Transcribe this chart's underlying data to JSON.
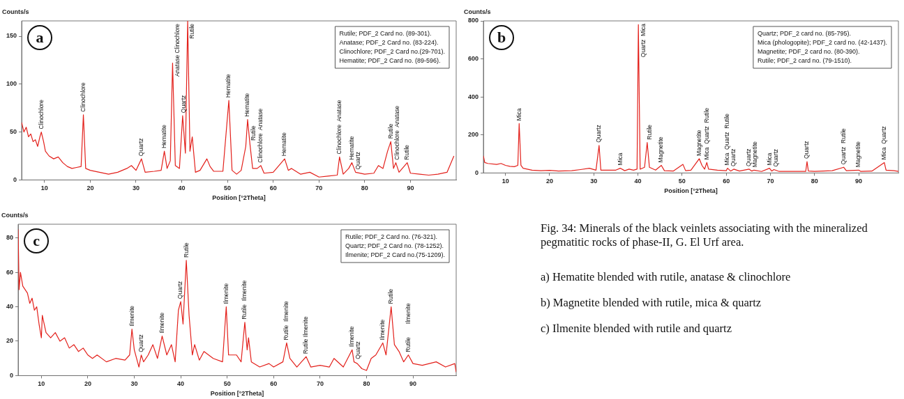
{
  "chart_data": [
    {
      "type": "line",
      "title": "a",
      "xlabel": "Position [°2Theta]",
      "ylabel": "Counts/s",
      "color": "#e3201b",
      "xlim": [
        5,
        100
      ],
      "ylim": [
        0,
        166
      ],
      "xticks": [
        10,
        20,
        30,
        40,
        50,
        60,
        70,
        80,
        90
      ],
      "yticks": [
        0,
        50,
        100,
        150
      ],
      "x": [
        5,
        5.5,
        6,
        6.5,
        7,
        7.5,
        8,
        8.5,
        9,
        9.3,
        9.8,
        10.2,
        11,
        12,
        13,
        14,
        15,
        16,
        17,
        18,
        18.5,
        19,
        20,
        22,
        24,
        26,
        28,
        29,
        30,
        31.2,
        32,
        34,
        35.5,
        36.2,
        36.8,
        37.5,
        38,
        38.6,
        39.5,
        40.2,
        40.8,
        41.3,
        41.8,
        42.3,
        43,
        44,
        45.5,
        46.2,
        47,
        49,
        50.3,
        51,
        52,
        53,
        54,
        54.4,
        54.9,
        55.5,
        56.5,
        57.3,
        58,
        60,
        62.5,
        63.3,
        64,
        66,
        68,
        70,
        72,
        74,
        74.5,
        75.3,
        76.5,
        77.2,
        78,
        80,
        82,
        83,
        84,
        85,
        85.7,
        86.3,
        86.8,
        87.5,
        89.3,
        90,
        92,
        94,
        96,
        98,
        99.5
      ],
      "values": [
        60,
        50,
        55,
        45,
        48,
        40,
        42,
        35,
        45,
        50,
        40,
        30,
        25,
        22,
        24,
        18,
        14,
        12,
        13,
        14,
        68,
        12,
        10,
        8,
        6,
        8,
        12,
        15,
        10,
        22,
        8,
        9,
        10,
        30,
        12,
        20,
        122,
        15,
        12,
        67,
        28,
        166,
        30,
        45,
        8,
        10,
        22,
        14,
        9,
        9,
        83,
        10,
        6,
        10,
        35,
        63,
        38,
        12,
        12,
        15,
        7,
        8,
        22,
        10,
        12,
        6,
        8,
        3,
        4,
        5,
        24,
        6,
        12,
        18,
        8,
        6,
        7,
        15,
        12,
        30,
        40,
        12,
        18,
        8,
        18,
        7,
        6,
        5,
        6,
        8,
        25
      ],
      "annotations": [
        "Rutile; PDF_2 Card no. (89-301).",
        "Anatase; PDF_2 Card no. (83-224).",
        "Clinochlore; PDF_2 Card no.(29-701).",
        "Hematite; PDF_2 Card no. (89-596).",
        {
          "text": "Clinochlore",
          "x": 9.3,
          "y": 50
        },
        {
          "text": "Clinochlore",
          "x": 18.5,
          "y": 68
        },
        {
          "text": "Quartz",
          "x": 31.2,
          "y": 22
        },
        {
          "text": "Hematite",
          "x": 36.2,
          "y": 30
        },
        {
          "text": "Anatase Clinochlore",
          "x": 38,
          "y": 122
        },
        {
          "text": "Quartz",
          "x": 40.2,
          "y": 67
        },
        {
          "text": "Rutile",
          "x": 41.3,
          "y": 166
        },
        {
          "text": "Hematite",
          "x": 50.3,
          "y": 83
        },
        {
          "text": "Hematite",
          "x": 54.4,
          "y": 63
        },
        {
          "text": "Rutile",
          "x": 54.9,
          "y": 38
        },
        {
          "text": "Clinochlore  Anatase",
          "x": 57.3,
          "y": 15
        },
        {
          "text": "Hematite",
          "x": 62.5,
          "y": 22
        },
        {
          "text": "Clinochlore  Anatase",
          "x": 74.5,
          "y": 24
        },
        {
          "text": "Hematite",
          "x": 77.2,
          "y": 18
        },
        {
          "text": "Quartz",
          "x": 78,
          "y": 8
        },
        {
          "text": "Rutile",
          "x": 85.7,
          "y": 40
        },
        {
          "text": "Clinochlore  Anatase",
          "x": 86.8,
          "y": 18
        },
        {
          "text": "Rutile",
          "x": 89.3,
          "y": 18
        }
      ]
    },
    {
      "type": "line",
      "title": "b",
      "xlabel": "Position [°2Theta]",
      "ylabel": "Counts/s",
      "color": "#e3201b",
      "xlim": [
        5,
        99
      ],
      "ylim": [
        0,
        800
      ],
      "xticks": [
        10,
        20,
        30,
        40,
        50,
        60,
        70,
        80,
        90
      ],
      "yticks": [
        0,
        200,
        400,
        600,
        800
      ],
      "x": [
        5,
        5.3,
        6,
        8,
        9,
        10,
        11,
        12,
        12.8,
        13.1,
        13.5,
        14,
        16,
        18,
        20,
        22,
        25,
        27,
        29,
        30.5,
        31.2,
        31.6,
        33,
        35,
        36,
        37,
        38,
        39,
        39.8,
        40.1,
        40.5,
        41.5,
        42.1,
        42.6,
        44,
        45.3,
        46,
        48,
        50.2,
        50.8,
        52,
        53.9,
        54.5,
        55.1,
        55.6,
        56,
        58,
        60,
        60.3,
        61,
        61.7,
        63,
        65.2,
        65.8,
        66.3,
        68,
        69.8,
        70.3,
        70.8,
        72,
        75,
        78,
        78.3,
        78.6,
        80,
        84,
        86.6,
        87.2,
        90,
        90.5,
        93,
        95.8,
        96.2,
        98,
        99
      ],
      "values": [
        90,
        55,
        50,
        45,
        50,
        40,
        35,
        33,
        40,
        260,
        40,
        25,
        15,
        12,
        14,
        10,
        12,
        18,
        25,
        15,
        145,
        15,
        15,
        15,
        25,
        12,
        20,
        15,
        20,
        780,
        20,
        30,
        160,
        30,
        15,
        40,
        12,
        10,
        45,
        12,
        15,
        75,
        40,
        20,
        55,
        20,
        15,
        12,
        25,
        10,
        20,
        10,
        20,
        10,
        15,
        8,
        25,
        10,
        18,
        8,
        8,
        8,
        60,
        10,
        8,
        12,
        30,
        12,
        15,
        8,
        10,
        55,
        15,
        12,
        8
      ],
      "annotations": [
        "Quartz; PDF_2 card no. (85-795).",
        "Mica (phologopite); PDF_2 card no. (42-1437).",
        "Magnetite; PDF_2 card no. (80-390).",
        "Rutile; PDF_2 card no. (79-1510).",
        {
          "text": "Mica",
          "x": 13.1,
          "y": 260
        },
        {
          "text": "Quartz",
          "x": 31.2,
          "y": 145
        },
        {
          "text": "Mica",
          "x": 36,
          "y": 25
        },
        {
          "text": "Quartz  Mica",
          "x": 40.1,
          "y": 780
        },
        {
          "text": "Rutile",
          "x": 42.1,
          "y": 160
        },
        {
          "text": "Magnetite",
          "x": 45.3,
          "y": 40
        },
        {
          "text": "Magnetite",
          "x": 53.9,
          "y": 75
        },
        {
          "text": "Mica  Quartz  Rutile",
          "x": 55.6,
          "y": 55
        },
        {
          "text": "Mica  Quartz  Rutile",
          "x": 60.3,
          "y": 25
        },
        {
          "text": "Quartz",
          "x": 61.7,
          "y": 20
        },
        {
          "text": "Quartz",
          "x": 65.2,
          "y": 20
        },
        {
          "text": "Magnetite",
          "x": 66.3,
          "y": 15
        },
        {
          "text": "Mica",
          "x": 69.8,
          "y": 25
        },
        {
          "text": "Quartz",
          "x": 70.8,
          "y": 18
        },
        {
          "text": "Quartz",
          "x": 78.3,
          "y": 60
        },
        {
          "text": "Quartz  Rutile",
          "x": 86.6,
          "y": 30
        },
        {
          "text": "Magnetite",
          "x": 90,
          "y": 15
        },
        {
          "text": "Mica  Quartz",
          "x": 95.8,
          "y": 55
        }
      ]
    },
    {
      "type": "line",
      "title": "c",
      "xlabel": "Position [°2Theta]",
      "ylabel": "Counts/s",
      "color": "#e3201b",
      "xlim": [
        5,
        99.3
      ],
      "ylim": [
        0,
        88
      ],
      "xticks": [
        10,
        20,
        30,
        40,
        50,
        60,
        70,
        80,
        90
      ],
      "yticks": [
        0,
        20,
        40,
        60,
        80
      ],
      "x": [
        5,
        5.2,
        5.5,
        6,
        7,
        7.5,
        8,
        8.5,
        9,
        9.5,
        10,
        10.2,
        11,
        12,
        13,
        14,
        15,
        16,
        17,
        18,
        19,
        20,
        21,
        22,
        24,
        26,
        28,
        29,
        29.5,
        30,
        31,
        31.5,
        32,
        33,
        34,
        35,
        36,
        37,
        38,
        38.8,
        39.5,
        40,
        40.5,
        41.2,
        41.8,
        42.5,
        43,
        44,
        45,
        47,
        49,
        49.8,
        50.3,
        52,
        53,
        53.8,
        54.3,
        54.6,
        55.2,
        57,
        59,
        60,
        62,
        62.8,
        63.5,
        65,
        66,
        67,
        68,
        70,
        72,
        73,
        75,
        76.9,
        77.3,
        78,
        79,
        80,
        81,
        82,
        83.5,
        84.2,
        85.3,
        86,
        87,
        88,
        89,
        90,
        92,
        95,
        97,
        99,
        99.3
      ],
      "values": [
        85,
        50,
        60,
        52,
        48,
        42,
        45,
        38,
        40,
        30,
        22,
        35,
        25,
        22,
        25,
        20,
        22,
        16,
        18,
        14,
        16,
        12,
        10,
        12,
        8,
        10,
        9,
        12,
        27,
        15,
        5,
        12,
        8,
        12,
        18,
        10,
        23,
        12,
        18,
        8,
        38,
        43,
        30,
        67,
        35,
        12,
        18,
        9,
        14,
        10,
        8,
        40,
        12,
        12,
        8,
        31,
        15,
        22,
        8,
        5,
        7,
        5,
        8,
        19,
        10,
        5,
        8,
        11,
        5,
        6,
        5,
        10,
        5,
        15,
        8,
        7,
        4,
        3,
        10,
        12,
        19,
        12,
        40,
        18,
        14,
        8,
        12,
        7,
        6,
        8,
        5,
        7,
        2
      ],
      "annotations": [
        "Rutile; PDF_2 Card no. (76-321).",
        "Quartz; PDF_2 Card no. (78-1252).",
        "Ilmenite; PDF_2 Card no.(75-1209).",
        {
          "text": "Ilmenite",
          "x": 29.5,
          "y": 27
        },
        {
          "text": "Quartz",
          "x": 31.5,
          "y": 12
        },
        {
          "text": "Ilmenite",
          "x": 36,
          "y": 23
        },
        {
          "text": "Quartz",
          "x": 40,
          "y": 43
        },
        {
          "text": "Rutile",
          "x": 41.2,
          "y": 67
        },
        {
          "text": "Ilmenite",
          "x": 49.8,
          "y": 40
        },
        {
          "text": "Rutile  Ilmenite",
          "x": 53.8,
          "y": 31
        },
        {
          "text": "Rutile  Ilmenite",
          "x": 62.8,
          "y": 19
        },
        {
          "text": "Rutile Ilmenite",
          "x": 67,
          "y": 11
        },
        {
          "text": "Ilmenite",
          "x": 76.9,
          "y": 15
        },
        {
          "text": "Quartz",
          "x": 77.3,
          "y": 8
        },
        {
          "text": "Ilmenite",
          "x": 83.5,
          "y": 19
        },
        {
          "text": "Rutile",
          "x": 85.3,
          "y": 40
        },
        {
          "text": "Rutile        Ilmenite",
          "x": 89,
          "y": 12
        }
      ]
    },
    {
      "type": "other",
      "title": "Fig. 34: Minerals of the black veinlets associating with the mineralized pegmatitic rocks of phase-II, G. El Urf area.",
      "annotations": [
        "a) Hematite blended with rutile, anatase & clinochlore",
        "b) Magnetite blended with rutile, mica  & quartz",
        "c) Ilmenite blended with rutile and quartz"
      ]
    }
  ]
}
